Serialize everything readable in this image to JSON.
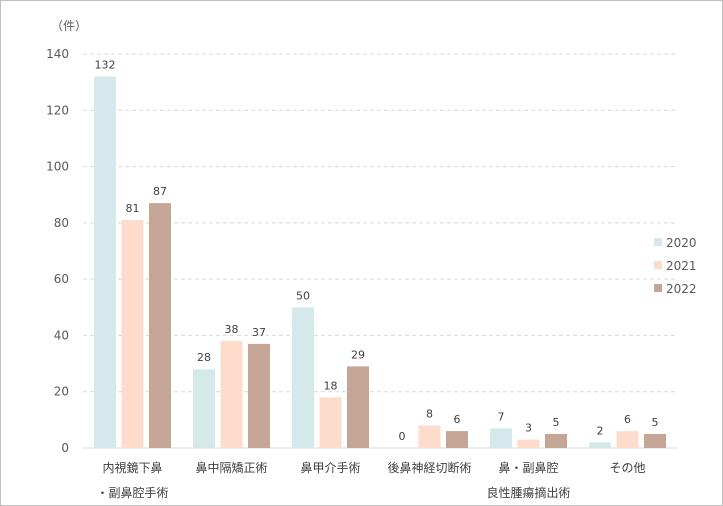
{
  "chart_data": {
    "type": "bar",
    "unit_label": "（件）",
    "categories": [
      [
        "内視鏡下鼻",
        "・副鼻腔手術"
      ],
      [
        "鼻中隔矯正術"
      ],
      [
        "鼻甲介手術"
      ],
      [
        "後鼻神経切断術"
      ],
      [
        "鼻・副鼻腔",
        "良性腫瘍摘出術"
      ],
      [
        "その他"
      ]
    ],
    "series": [
      {
        "name": "2020",
        "color": "#d5e9ea",
        "values": [
          132,
          28,
          50,
          0,
          7,
          2
        ]
      },
      {
        "name": "2021",
        "color": "#fddccb",
        "values": [
          81,
          38,
          18,
          8,
          3,
          6
        ]
      },
      {
        "name": "2022",
        "color": "#c4a596",
        "values": [
          87,
          37,
          29,
          6,
          5,
          5
        ]
      }
    ],
    "ylim": [
      0,
      140
    ],
    "yticks": [
      0,
      20,
      40,
      60,
      80,
      100,
      120,
      140
    ],
    "grid": true,
    "legend_position": "right"
  }
}
